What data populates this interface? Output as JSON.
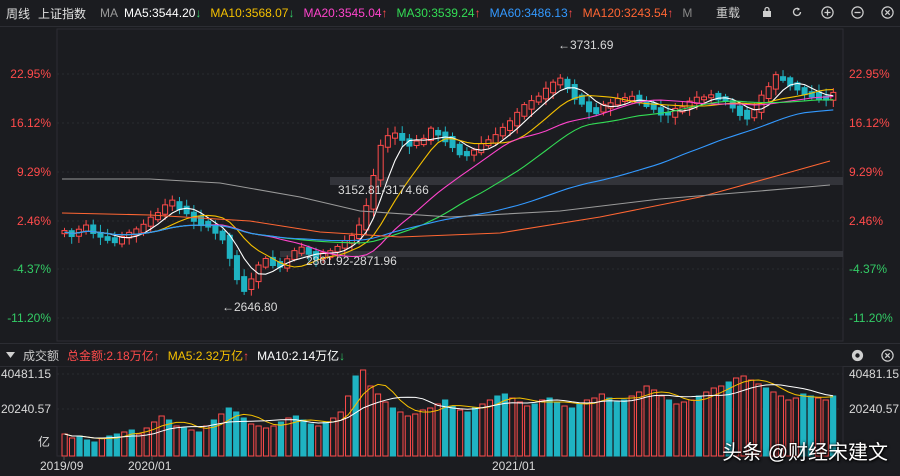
{
  "header": {
    "period": "周线",
    "index_name": "上证指数",
    "ma_label": "MA",
    "ma_items": [
      {
        "text": "MA5:3544.20",
        "dir": "down",
        "color": "#ffffff"
      },
      {
        "text": "MA10:3568.07",
        "dir": "down",
        "color": "#f5c000"
      },
      {
        "text": "MA20:3545.04",
        "dir": "up",
        "color": "#ff44cc"
      },
      {
        "text": "MA30:3539.24",
        "dir": "up",
        "color": "#33dd55"
      },
      {
        "text": "MA60:3486.13",
        "dir": "up",
        "color": "#3399ff"
      },
      {
        "text": "MA120:3243.54",
        "dir": "up",
        "color": "#ff6633"
      },
      {
        "text": "M",
        "dir": "",
        "color": "#888888"
      }
    ],
    "restore_label": "重载",
    "icons": [
      "lock-icon",
      "refresh-icon",
      "add-icon",
      "remove-icon",
      "close-icon"
    ]
  },
  "price_axis": {
    "labels": [
      "22.95%",
      "16.12%",
      "9.29%",
      "2.46%",
      "-4.37%",
      "-11.20%"
    ],
    "label_colors": [
      "#ff4b4b",
      "#ff4b4b",
      "#ff4b4b",
      "#ff4b4b",
      "#33cc66",
      "#33cc66"
    ]
  },
  "annotations": {
    "high": "←3731.69",
    "low": "←2646.80",
    "gap_upper": "3152.81-3174.66",
    "gap_lower": "2861.92-2871.96"
  },
  "volume": {
    "title": "成交额",
    "total_label": "总金额:2.18万亿",
    "total_dir": "up",
    "ma5_label": "MA5:2.32万亿",
    "ma5_dir": "up",
    "ma10_label": "MA10:2.14万亿",
    "ma10_dir": "down",
    "axis_labels": [
      "40481.15",
      "20240.57"
    ],
    "unit_label": "亿",
    "icons": [
      "settings-icon",
      "close-icon"
    ]
  },
  "time_axis": {
    "labels": [
      "2019/09",
      "2020/01",
      "2021/01"
    ]
  },
  "watermark": "头条 @财经宋建文",
  "colors": {
    "up": "#ff4b4b",
    "down": "#1fb3c2",
    "ma5": "#ffffff",
    "ma10": "#f5c000",
    "ma20": "#ff44cc",
    "ma30": "#33dd55",
    "ma60": "#3399ff",
    "ma120": "#ff6633",
    "ma250": "#9a9a9a"
  },
  "chart_data": {
    "type": "candlestick",
    "x": [
      "2019/09",
      "2020/01",
      "2021/01"
    ],
    "y_axis_labels": [
      "22.95%",
      "16.12%",
      "9.29%",
      "2.46%",
      "-4.37%",
      "-11.20%"
    ],
    "high": 3731.69,
    "low": 2646.8,
    "gaps": [
      "3152.81-3174.66",
      "2861.92-2871.96"
    ],
    "moving_averages": {
      "MA5": 3544.2,
      "MA10": 3568.07,
      "MA20": 3545.04,
      "MA30": 3539.24,
      "MA60": 3486.13,
      "MA120": 3243.54
    },
    "volume": {
      "total": "2.18万亿",
      "MA5": "2.32万亿",
      "MA10": "2.14万亿"
    },
    "grid": true
  }
}
